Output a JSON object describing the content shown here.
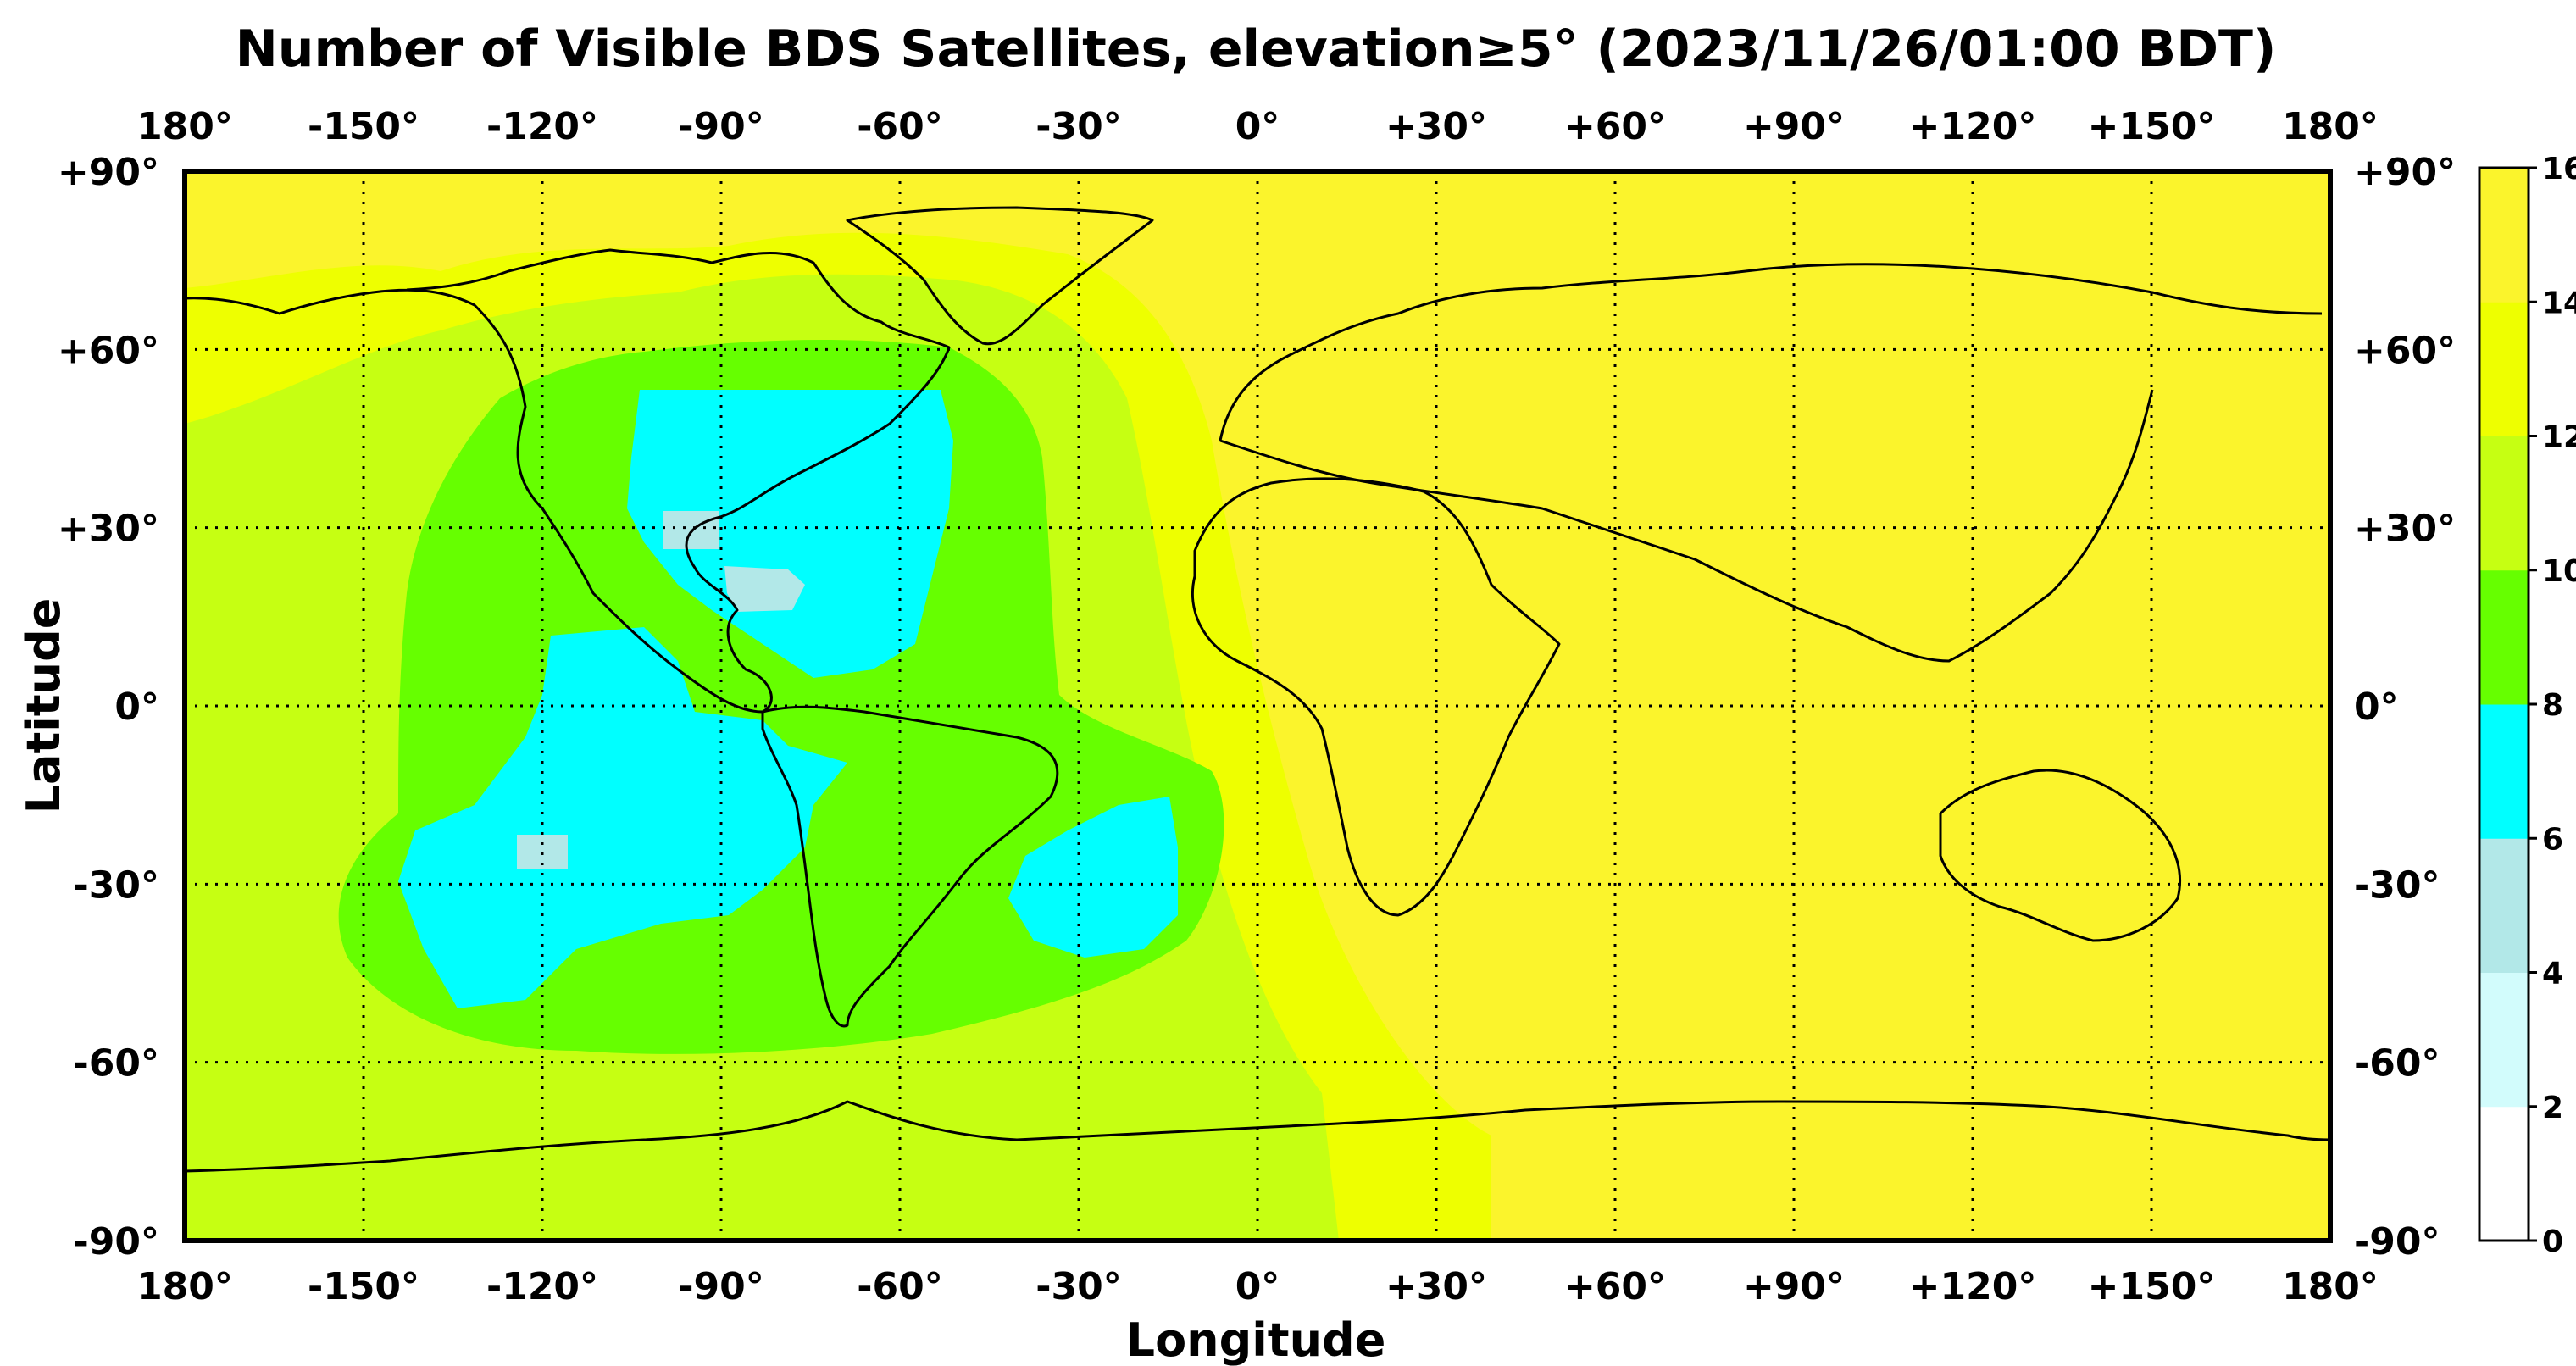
{
  "title": "Number of Visible BDS Satellites, elevation≥5° (2023/11/26/01:00 BDT)",
  "xlabel": "Longitude",
  "ylabel": "Latitude",
  "x_ticks": [
    "180°",
    "-150°",
    "-120°",
    "-90°",
    "-60°",
    "-30°",
    "0°",
    "+30°",
    "+60°",
    "+90°",
    "+120°",
    "+150°",
    "180°"
  ],
  "y_ticks": [
    "+90°",
    "+60°",
    "+30°",
    "0°",
    "-30°",
    "-60°",
    "-90°"
  ],
  "colorbar": {
    "ticks": [
      "0",
      "2",
      "4",
      "6",
      "8",
      "10",
      "12",
      "14",
      "16"
    ],
    "colors": [
      "#ffffff",
      "#d2fcfc",
      "#b2e8e8",
      "#00ffff",
      "#66ff00",
      "#c6ff12",
      "#eeff00",
      "#fbf42c"
    ]
  },
  "map_data": {
    "type": "heatmap",
    "value_range": [
      0,
      16
    ],
    "background_class_value": 15,
    "regions": [
      {
        "name": "outer-ring",
        "value": 13
      },
      {
        "name": "ring",
        "value": 11
      },
      {
        "name": "green-zone",
        "value": 9
      },
      {
        "name": "cyan-north-america",
        "value": 7
      },
      {
        "name": "cyan-south-pacific",
        "value": 7
      },
      {
        "name": "cyan-south-atlantic",
        "value": 7
      },
      {
        "name": "pale-gulf",
        "value": 5
      },
      {
        "name": "pale-caribbean",
        "value": 5
      },
      {
        "name": "pale-pacific",
        "value": 5
      }
    ]
  }
}
